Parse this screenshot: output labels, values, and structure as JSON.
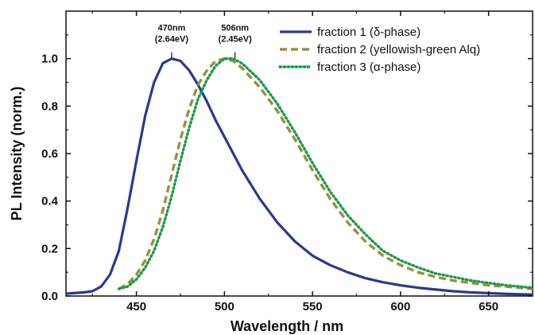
{
  "chart_data": {
    "type": "line",
    "xlabel": "Wavelength / nm",
    "ylabel": "PL Intensity (norm.)",
    "xlim": [
      410,
      675
    ],
    "ylim": [
      0,
      1.2
    ],
    "xticks": [
      "450",
      "500",
      "550",
      "600",
      "650"
    ],
    "xtick_values": [
      450,
      500,
      550,
      600,
      650
    ],
    "yticks": [
      "0.0",
      "0.2",
      "0.4",
      "0.6",
      "0.8",
      "1.0"
    ],
    "ytick_values": [
      0,
      0.2,
      0.4,
      0.6,
      0.8,
      1.0
    ],
    "grid": false,
    "legend_position": "top-right",
    "series": [
      {
        "name": "fraction 1 (δ-phase)",
        "color": "#2b3990",
        "style": "solid",
        "x": [
          410,
          420,
          425,
          430,
          435,
          440,
          445,
          450,
          455,
          460,
          465,
          470,
          475,
          480,
          485,
          490,
          495,
          500,
          510,
          520,
          530,
          540,
          550,
          560,
          570,
          580,
          590,
          600,
          610,
          620,
          630,
          640,
          650,
          660,
          675
        ],
        "y": [
          0.01,
          0.015,
          0.02,
          0.04,
          0.09,
          0.19,
          0.37,
          0.57,
          0.76,
          0.9,
          0.98,
          1.0,
          0.99,
          0.95,
          0.89,
          0.82,
          0.74,
          0.67,
          0.53,
          0.41,
          0.31,
          0.23,
          0.17,
          0.13,
          0.1,
          0.075,
          0.058,
          0.045,
          0.035,
          0.027,
          0.02,
          0.015,
          0.012,
          0.009,
          0.006
        ]
      },
      {
        "name": "fraction 2 (yellowish-green Alq)",
        "color": "#9b8f3e",
        "style": "dashed",
        "x": [
          440,
          445,
          450,
          455,
          460,
          465,
          470,
          475,
          480,
          485,
          490,
          495,
          500,
          505,
          510,
          520,
          530,
          540,
          550,
          560,
          570,
          580,
          590,
          600,
          610,
          620,
          630,
          640,
          650,
          660,
          675
        ],
        "y": [
          0.03,
          0.05,
          0.09,
          0.15,
          0.24,
          0.36,
          0.51,
          0.66,
          0.79,
          0.89,
          0.95,
          0.99,
          1.0,
          0.99,
          0.96,
          0.88,
          0.78,
          0.66,
          0.53,
          0.41,
          0.31,
          0.23,
          0.17,
          0.13,
          0.1,
          0.08,
          0.065,
          0.055,
          0.045,
          0.04,
          0.03
        ]
      },
      {
        "name": "fraction 3 (α-phase)",
        "color": "#1a9a49",
        "style": "dotted",
        "x": [
          440,
          445,
          450,
          455,
          460,
          465,
          470,
          475,
          480,
          485,
          490,
          495,
          500,
          505,
          510,
          520,
          530,
          540,
          550,
          560,
          570,
          580,
          590,
          600,
          610,
          620,
          630,
          640,
          650,
          660,
          675
        ],
        "y": [
          0.03,
          0.04,
          0.07,
          0.12,
          0.19,
          0.29,
          0.42,
          0.57,
          0.71,
          0.83,
          0.91,
          0.97,
          1.0,
          1.0,
          0.98,
          0.91,
          0.81,
          0.69,
          0.56,
          0.44,
          0.34,
          0.26,
          0.19,
          0.15,
          0.12,
          0.095,
          0.08,
          0.065,
          0.055,
          0.045,
          0.035
        ]
      }
    ],
    "annotations": [
      {
        "x": 470,
        "y": 1.0,
        "text": [
          "470nm",
          "(2.64eV)"
        ]
      },
      {
        "x": 506,
        "y": 1.0,
        "text": [
          "506nm",
          "(2.45eV)"
        ]
      }
    ]
  }
}
